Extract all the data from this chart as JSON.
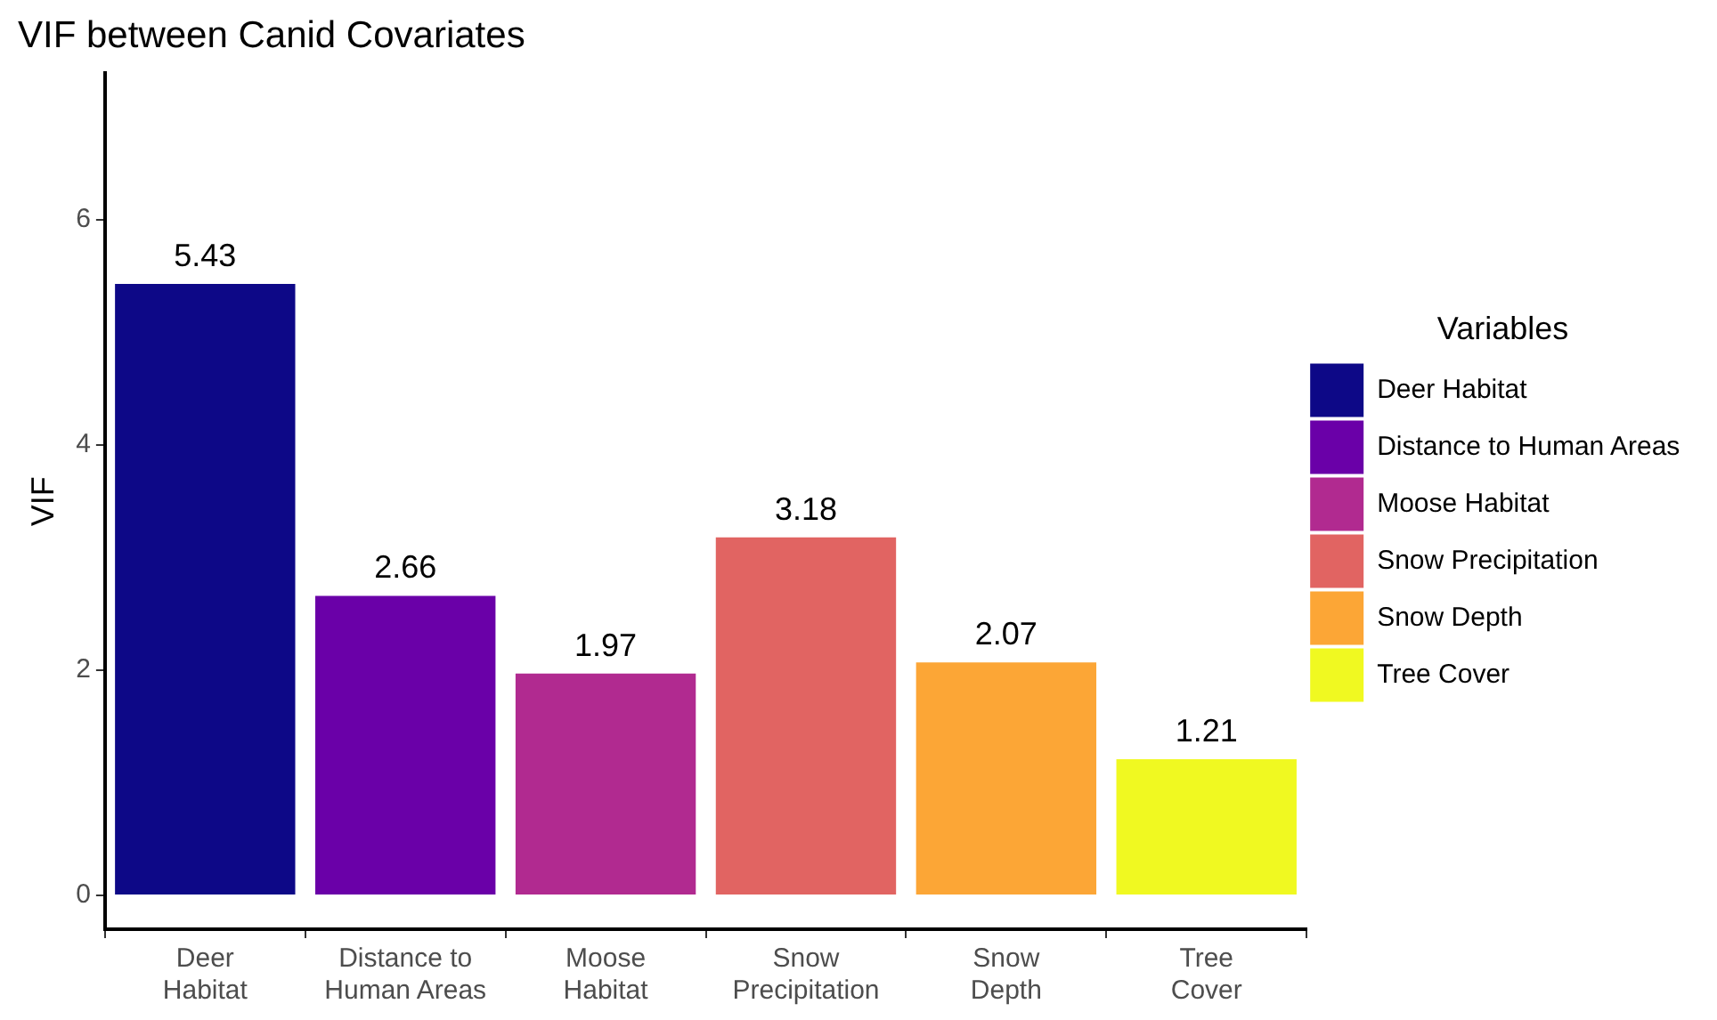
{
  "chart_data": {
    "type": "bar",
    "title": "VIF between Canid Covariates",
    "ylabel": "VIF",
    "legend_title": "Variables",
    "categories": [
      "Deer Habitat",
      "Distance to Human Areas",
      "Moose Habitat",
      "Snow Precipitation",
      "Snow Depth",
      "Tree Cover"
    ],
    "series": [
      {
        "name": "Deer Habitat",
        "color": "#0d0887",
        "values": [
          5.43,
          null,
          null,
          null,
          null,
          null
        ]
      },
      {
        "name": "Distance to Human Areas",
        "color": "#6a00a8",
        "values": [
          null,
          2.66,
          null,
          null,
          null,
          null
        ]
      },
      {
        "name": "Moose Habitat",
        "color": "#b12a90",
        "values": [
          null,
          null,
          1.97,
          null,
          null,
          null
        ]
      },
      {
        "name": "Snow Precipitation",
        "color": "#e16462",
        "values": [
          null,
          null,
          null,
          3.18,
          null,
          null
        ]
      },
      {
        "name": "Snow Depth",
        "color": "#fca636",
        "values": [
          null,
          null,
          null,
          null,
          2.07,
          null
        ]
      },
      {
        "name": "Tree Cover",
        "color": "#f0f921",
        "values": [
          null,
          null,
          null,
          null,
          null,
          1.21
        ]
      }
    ],
    "ylim": [
      -0.3,
      7.3
    ],
    "yticks": [
      0,
      2,
      4,
      6
    ],
    "grid": false,
    "legend": "right",
    "data_labels": true
  }
}
